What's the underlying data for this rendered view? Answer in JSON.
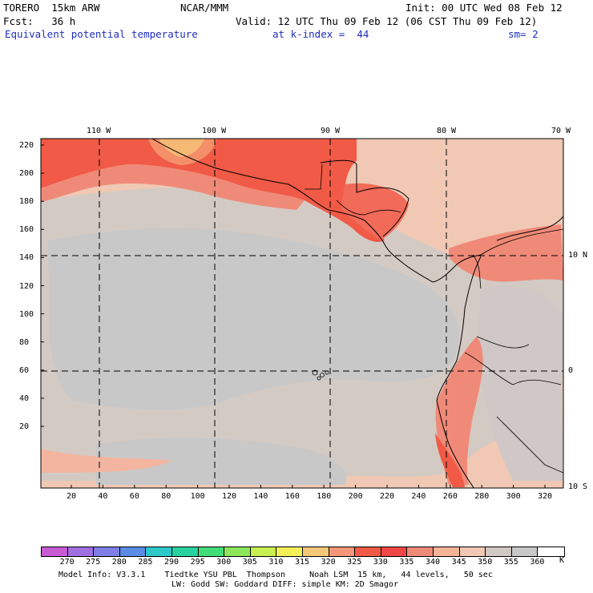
{
  "header": {
    "model": "TORERO  15km ARW",
    "center": "NCAR/MMM",
    "init": "Init: 00 UTC Wed 08 Feb 12",
    "fcst": "Fcst:   36 h",
    "valid": "Valid: 12 UTC Thu 09 Feb 12 (06 CST Thu 09 Feb 12)",
    "field": "Equivalent potential temperature",
    "level": "at k-index =  44",
    "smooth": "sm= 2"
  },
  "map": {
    "top_lon_labels": [
      "110 W",
      "100 W",
      "90 W",
      "80 W",
      "70 W"
    ],
    "right_lat_labels": [
      "10 N",
      "0",
      "10 S"
    ],
    "left_y_ticks": [
      "220",
      "200",
      "180",
      "160",
      "140",
      "120",
      "100",
      "80",
      "60",
      "40",
      "20"
    ],
    "bottom_x_ticks": [
      "20",
      "40",
      "60",
      "80",
      "100",
      "120",
      "140",
      "160",
      "180",
      "200",
      "220",
      "240",
      "260",
      "280",
      "300",
      "320"
    ]
  },
  "colorbar": {
    "unit": "K",
    "levels": [
      "270",
      "275",
      "280",
      "285",
      "290",
      "295",
      "300",
      "305",
      "310",
      "315",
      "320",
      "325",
      "330",
      "335",
      "340",
      "345",
      "350",
      "355",
      "360"
    ],
    "colors": [
      "#c85ad2",
      "#a070e0",
      "#7e7ee6",
      "#5a8ce6",
      "#2ec8c8",
      "#28d2a0",
      "#40dc78",
      "#8ce65a",
      "#c8f050",
      "#f5f058",
      "#f5c878",
      "#f59678",
      "#f05a46",
      "#f04646",
      "#f08a78",
      "#f5b496",
      "#f0c8b4",
      "#d2c8c3",
      "#c8c8c8",
      "#ffffff"
    ]
  },
  "footer": {
    "line1": "Model Info: V3.3.1    Tiedtke YSU PBL  Thompson     Noah LSM  15 km,   44 levels,   50 sec",
    "line2": "LW: Godd SW: Goddard DIFF: simple KM: 2D Smagor"
  }
}
